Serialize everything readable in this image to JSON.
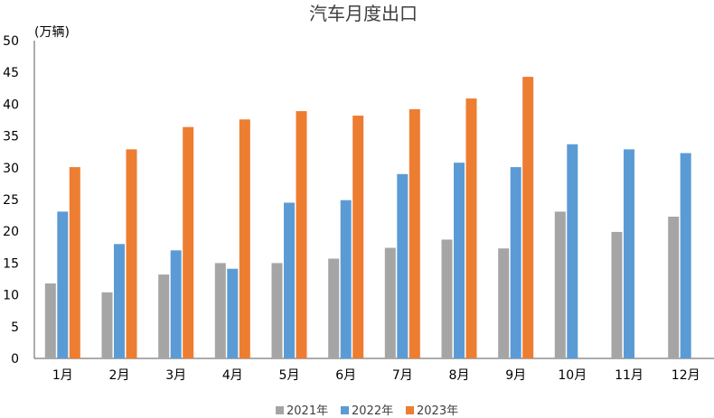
{
  "chart_data": {
    "type": "bar",
    "title": "汽车月度出口",
    "ylabel": "(万辆)",
    "xlabel": "",
    "categories": [
      "1月",
      "2月",
      "3月",
      "4月",
      "5月",
      "6月",
      "7月",
      "8月",
      "9月",
      "10月",
      "11月",
      "12月"
    ],
    "ylim": [
      0,
      50
    ],
    "yticks": [
      0,
      5,
      10,
      15,
      20,
      25,
      30,
      35,
      40,
      45,
      50
    ],
    "grid": false,
    "legend_position": "bottom",
    "series": [
      {
        "name": "2021年",
        "color": "#a5a5a5",
        "values": [
          11.8,
          10.4,
          13.2,
          15.0,
          15.0,
          15.7,
          17.4,
          18.7,
          17.3,
          23.1,
          19.9,
          22.3
        ]
      },
      {
        "name": "2022年",
        "color": "#5b9bd5",
        "values": [
          23.1,
          18.0,
          17.0,
          14.1,
          24.5,
          24.9,
          29.0,
          30.8,
          30.1,
          33.7,
          32.9,
          32.3
        ]
      },
      {
        "name": "2023年",
        "color": "#ed7d31",
        "values": [
          30.1,
          32.9,
          36.4,
          37.6,
          38.9,
          38.2,
          39.2,
          40.9,
          44.3,
          null,
          null,
          null
        ]
      }
    ]
  }
}
